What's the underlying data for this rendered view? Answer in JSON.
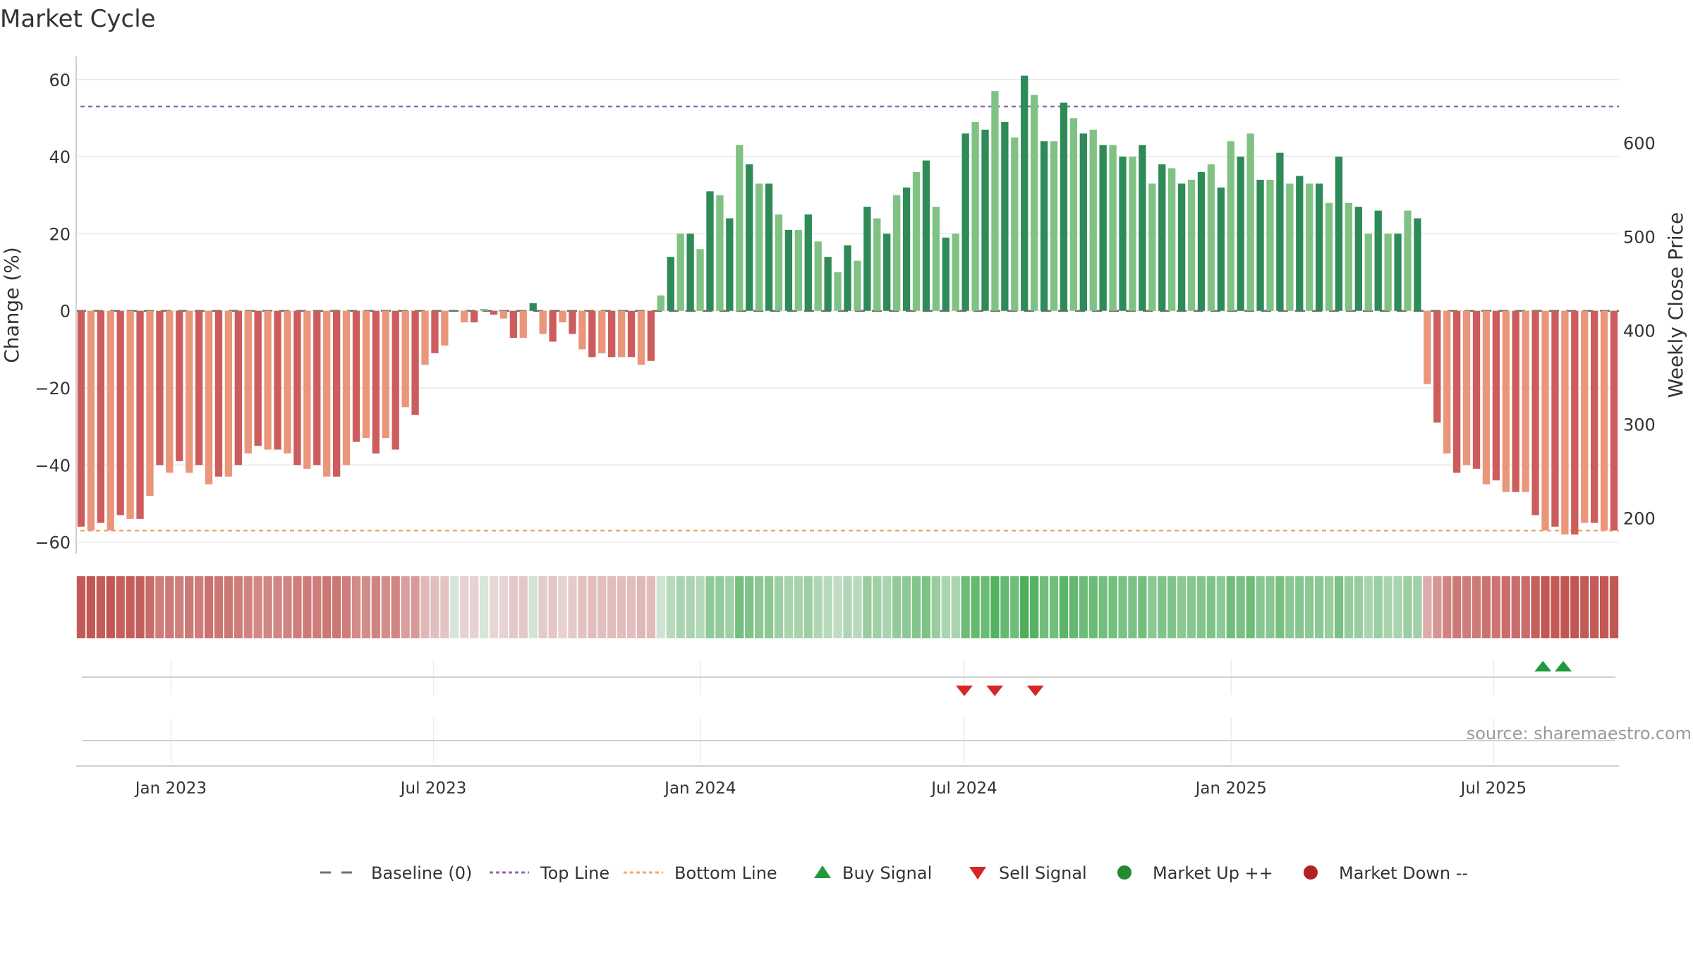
{
  "chart_data": {
    "type": "bar",
    "title": "Market Cycle",
    "ylabel": "Change (%)",
    "y2label": "Weekly Close Price",
    "ylim": [
      -63,
      66
    ],
    "y2lim": [
      162,
      692
    ],
    "yticks": [
      -60,
      -40,
      -20,
      0,
      20,
      40,
      60
    ],
    "y2ticks": [
      200,
      300,
      400,
      500,
      600
    ],
    "top_line": 53,
    "bottom_line": -57,
    "grid": true,
    "legend_position": "bottom-center",
    "source": "source: sharemaestro.com",
    "x_start": "2022-10-31",
    "x_end": "2025-09-22",
    "x_ticks": [
      {
        "label": "Jan 2023",
        "date": "2023-01-01"
      },
      {
        "label": "Jul 2023",
        "date": "2023-07-01"
      },
      {
        "label": "Jan 2024",
        "date": "2024-01-01"
      },
      {
        "label": "Jul 2024",
        "date": "2024-07-01"
      },
      {
        "label": "Jan 2025",
        "date": "2025-01-01"
      },
      {
        "label": "Jul 2025",
        "date": "2025-07-01"
      }
    ],
    "values": [
      -56,
      -57,
      -55,
      -57,
      -53,
      -54,
      -54,
      -48,
      -40,
      -42,
      -39,
      -42,
      -40,
      -45,
      -43,
      -43,
      -40,
      -37,
      -35,
      -36,
      -36,
      -37,
      -40,
      -41,
      -40,
      -43,
      -43,
      -40,
      -34,
      -33,
      -37,
      -33,
      -36,
      -25,
      -27,
      -14,
      -11,
      -9,
      0,
      -3,
      -3,
      0.5,
      -1,
      -2,
      -7,
      -7,
      2,
      -6,
      -8,
      -3,
      -6,
      -10,
      -12,
      -11,
      -12,
      -12,
      -12,
      -14,
      -13,
      4,
      14,
      20,
      20,
      16,
      31,
      30,
      24,
      43,
      38,
      33,
      33,
      25,
      21,
      21,
      25,
      18,
      14,
      10,
      17,
      13,
      27,
      24,
      20,
      30,
      32,
      36,
      39,
      27,
      19,
      20,
      46,
      49,
      47,
      57,
      49,
      45,
      61,
      56,
      44,
      44,
      54,
      50,
      46,
      47,
      43,
      43,
      40,
      40,
      43,
      33,
      38,
      37,
      33,
      34,
      36,
      38,
      32,
      44,
      40,
      46,
      34,
      34,
      41,
      33,
      35,
      33,
      33,
      28,
      40,
      28,
      27,
      20,
      26,
      20,
      20,
      26,
      24,
      -19,
      -29,
      -37,
      -42,
      -40,
      -41,
      -45,
      -44,
      -47,
      -47,
      -47,
      -53,
      -57,
      -56,
      -58,
      -58,
      -55,
      -55,
      -57,
      -57
    ],
    "buy_signals": [
      "2025-08-04",
      "2025-08-18"
    ],
    "sell_signals": [
      "2024-07-01",
      "2024-07-22",
      "2024-08-19"
    ],
    "legend": [
      {
        "label": "Baseline (0)",
        "symbol": "dash",
        "color": "#707070"
      },
      {
        "label": "Top Line",
        "symbol": "dotted",
        "color": "#9467bd"
      },
      {
        "label": "Bottom Line",
        "symbol": "dotted",
        "color": "#f0a868"
      },
      {
        "label": "Buy Signal",
        "symbol": "triangle-up",
        "color": "#1f9a3c"
      },
      {
        "label": "Sell Signal",
        "symbol": "triangle-down",
        "color": "#d62728"
      },
      {
        "label": "Market Up ++",
        "symbol": "circle",
        "color": "#238a2e"
      },
      {
        "label": "Market Down --",
        "symbol": "circle",
        "color": "#b22222"
      }
    ],
    "colors": {
      "pos_dark": "#2e8b57",
      "pos_light": "#80c283",
      "neg_dark": "#cd5c5c",
      "neg_light": "#e9967a",
      "heat_pos": "#4caf5a",
      "heat_neg": "#c0504d",
      "top_line": "#9467bd",
      "bottom_line": "#f0a868"
    }
  }
}
